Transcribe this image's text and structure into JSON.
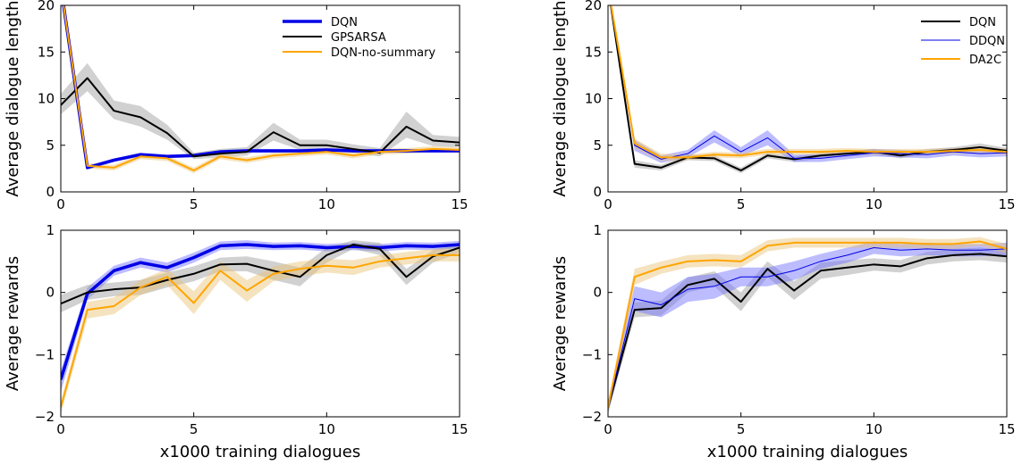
{
  "colors": {
    "blue": "#0000e6",
    "black": "#000000",
    "orange": "#ffa500",
    "gray_band": "#999999",
    "blue_band": "#6b6bff",
    "orange_band": "#e8c070"
  },
  "chart_data": [
    {
      "id": "top-left",
      "type": "line",
      "xlabel": "",
      "ylabel": "Average dialogue length",
      "xlim": [
        0,
        15
      ],
      "ylim": [
        0,
        20
      ],
      "xticks": [
        0,
        5,
        10,
        15
      ],
      "yticks": [
        0,
        5,
        10,
        15,
        20
      ],
      "legend_position": "top-right",
      "x": [
        0,
        1,
        2,
        3,
        4,
        5,
        6,
        7,
        8,
        9,
        10,
        11,
        12,
        13,
        14,
        15
      ],
      "series": [
        {
          "name": "DQN",
          "color": "#0000e6",
          "width": 3.5,
          "band_color": "#6b6bff",
          "values": [
            22,
            2.6,
            3.4,
            4.0,
            3.8,
            3.9,
            4.3,
            4.4,
            4.4,
            4.4,
            4.5,
            4.4,
            4.4,
            4.4,
            4.4,
            4.4
          ],
          "lower": [
            22,
            2.4,
            3.2,
            3.8,
            3.6,
            3.7,
            4.1,
            4.2,
            4.2,
            4.2,
            4.3,
            4.2,
            4.2,
            4.2,
            4.2,
            4.2
          ],
          "upper": [
            22,
            2.8,
            3.6,
            4.2,
            4.0,
            4.1,
            4.5,
            4.6,
            4.6,
            4.6,
            4.7,
            4.6,
            4.6,
            4.6,
            4.6,
            4.6
          ]
        },
        {
          "name": "GPSARSA",
          "color": "#000000",
          "width": 2,
          "band_color": "#999999",
          "values": [
            9.3,
            12.2,
            8.7,
            8.0,
            6.3,
            3.8,
            4.1,
            4.3,
            6.4,
            5.0,
            5.0,
            4.6,
            4.2,
            7.0,
            5.5,
            5.3
          ],
          "lower": [
            8.3,
            10.8,
            7.8,
            7.0,
            5.6,
            3.5,
            3.7,
            3.9,
            5.5,
            4.5,
            4.5,
            4.2,
            3.8,
            5.8,
            4.9,
            4.8
          ],
          "upper": [
            10.5,
            13.8,
            9.8,
            9.2,
            7.2,
            4.2,
            4.6,
            4.8,
            7.4,
            5.6,
            5.6,
            5.1,
            4.7,
            8.6,
            6.1,
            5.9
          ]
        },
        {
          "name": "DQN-no-summary",
          "color": "#ffa500",
          "width": 2,
          "band_color": "#e8c070",
          "values": [
            22,
            2.8,
            2.6,
            3.8,
            3.6,
            2.3,
            3.8,
            3.4,
            3.9,
            4.1,
            4.3,
            3.9,
            4.3,
            4.4,
            4.6,
            4.5
          ],
          "lower": [
            22,
            2.5,
            2.3,
            3.5,
            3.3,
            2.0,
            3.5,
            3.1,
            3.6,
            3.8,
            4.0,
            3.6,
            4.0,
            4.1,
            4.3,
            4.2
          ],
          "upper": [
            22,
            3.1,
            2.9,
            4.1,
            3.9,
            2.6,
            4.1,
            3.7,
            4.2,
            4.4,
            4.6,
            4.2,
            4.6,
            4.7,
            4.9,
            4.8
          ]
        }
      ]
    },
    {
      "id": "top-right",
      "type": "line",
      "xlabel": "",
      "ylabel": "Average dialogue length",
      "xlim": [
        0,
        15
      ],
      "ylim": [
        0,
        20
      ],
      "xticks": [
        0,
        5,
        10,
        15
      ],
      "yticks": [
        0,
        5,
        10,
        15,
        20
      ],
      "legend_position": "top-right",
      "x": [
        0,
        1,
        2,
        3,
        4,
        5,
        6,
        7,
        8,
        9,
        10,
        11,
        12,
        13,
        14,
        15
      ],
      "series": [
        {
          "name": "DQN",
          "color": "#000000",
          "width": 2,
          "band_color": "#999999",
          "values": [
            22,
            3.0,
            2.6,
            3.7,
            3.6,
            2.3,
            3.9,
            3.5,
            3.9,
            4.1,
            4.3,
            3.9,
            4.3,
            4.5,
            4.8,
            4.4
          ],
          "lower": [
            22,
            2.6,
            2.3,
            3.4,
            3.3,
            2.0,
            3.6,
            3.2,
            3.6,
            3.8,
            4.0,
            3.6,
            4.0,
            4.2,
            4.4,
            4.1
          ],
          "upper": [
            22,
            3.4,
            2.9,
            4.0,
            3.9,
            2.6,
            4.2,
            3.8,
            4.2,
            4.4,
            4.6,
            4.2,
            4.6,
            4.8,
            5.2,
            4.7
          ]
        },
        {
          "name": "DDQN",
          "color": "#0000e6",
          "width": 1,
          "band_color": "#6b6bff",
          "values": [
            22,
            5.0,
            3.5,
            4.1,
            6.0,
            4.3,
            5.8,
            3.6,
            3.6,
            3.9,
            4.2,
            4.1,
            4.0,
            4.3,
            4.1,
            4.2
          ],
          "lower": [
            22,
            4.4,
            3.1,
            3.7,
            5.3,
            3.8,
            5.0,
            3.2,
            3.2,
            3.5,
            3.8,
            3.7,
            3.6,
            3.9,
            3.7,
            3.8
          ],
          "upper": [
            22,
            5.6,
            3.9,
            4.5,
            6.6,
            4.8,
            6.6,
            4.0,
            4.0,
            4.3,
            4.6,
            4.5,
            4.4,
            4.7,
            4.5,
            4.6
          ]
        },
        {
          "name": "DA2C",
          "color": "#ffa500",
          "width": 2,
          "band_color": "#e8c070",
          "values": [
            22,
            5.2,
            3.7,
            3.7,
            4.0,
            3.9,
            4.3,
            4.3,
            4.3,
            4.4,
            4.3,
            4.3,
            4.3,
            4.4,
            4.5,
            4.3
          ],
          "lower": [
            22,
            4.7,
            3.3,
            3.4,
            3.7,
            3.6,
            4.0,
            4.0,
            4.0,
            4.1,
            4.0,
            4.0,
            4.0,
            4.1,
            4.2,
            4.0
          ],
          "upper": [
            22,
            5.7,
            4.1,
            4.0,
            4.3,
            4.2,
            4.6,
            4.6,
            4.6,
            4.7,
            4.6,
            4.6,
            4.6,
            4.7,
            4.8,
            4.6
          ]
        }
      ]
    },
    {
      "id": "bottom-left",
      "type": "line",
      "xlabel": "x1000 training dialogues",
      "ylabel": "Average rewards",
      "xlim": [
        0,
        15
      ],
      "ylim": [
        -2,
        1
      ],
      "xticks": [
        0,
        5,
        10,
        15
      ],
      "yticks": [
        -2,
        -1,
        0,
        1
      ],
      "x": [
        0,
        1,
        2,
        3,
        4,
        5,
        6,
        7,
        8,
        9,
        10,
        11,
        12,
        13,
        14,
        15
      ],
      "series": [
        {
          "name": "DQN",
          "color": "#0000e6",
          "width": 3.5,
          "band_color": "#6b6bff",
          "values": [
            -1.4,
            -0.02,
            0.35,
            0.48,
            0.4,
            0.56,
            0.75,
            0.77,
            0.74,
            0.75,
            0.72,
            0.74,
            0.72,
            0.75,
            0.74,
            0.77
          ],
          "lower": [
            -1.6,
            -0.12,
            0.27,
            0.4,
            0.32,
            0.48,
            0.68,
            0.7,
            0.68,
            0.69,
            0.66,
            0.68,
            0.66,
            0.69,
            0.68,
            0.71
          ],
          "upper": [
            -1.25,
            0.08,
            0.43,
            0.56,
            0.48,
            0.64,
            0.82,
            0.84,
            0.8,
            0.81,
            0.78,
            0.8,
            0.78,
            0.81,
            0.8,
            0.83
          ]
        },
        {
          "name": "GPSARSA",
          "color": "#000000",
          "width": 2,
          "band_color": "#999999",
          "values": [
            -0.18,
            0.0,
            0.05,
            0.08,
            0.2,
            0.3,
            0.45,
            0.46,
            0.35,
            0.25,
            0.6,
            0.77,
            0.7,
            0.25,
            0.58,
            0.72
          ],
          "lower": [
            -0.32,
            -0.12,
            -0.06,
            -0.04,
            0.08,
            0.18,
            0.34,
            0.34,
            0.2,
            0.1,
            0.48,
            0.7,
            0.6,
            0.12,
            0.48,
            0.64
          ],
          "upper": [
            -0.04,
            0.12,
            0.16,
            0.2,
            0.32,
            0.42,
            0.56,
            0.58,
            0.5,
            0.4,
            0.72,
            0.84,
            0.8,
            0.38,
            0.68,
            0.8
          ]
        },
        {
          "name": "DQN-no-summary",
          "color": "#ffa500",
          "width": 2,
          "band_color": "#e8c070",
          "values": [
            -1.85,
            -0.28,
            -0.22,
            0.08,
            0.25,
            -0.17,
            0.35,
            0.03,
            0.3,
            0.38,
            0.43,
            0.4,
            0.5,
            0.55,
            0.6,
            0.6
          ],
          "lower": [
            -1.95,
            -0.42,
            -0.35,
            -0.04,
            0.12,
            -0.35,
            0.2,
            -0.15,
            0.18,
            0.26,
            0.32,
            0.28,
            0.4,
            0.45,
            0.5,
            0.5
          ],
          "upper": [
            -1.75,
            -0.15,
            -0.08,
            0.2,
            0.38,
            0.02,
            0.5,
            0.2,
            0.42,
            0.5,
            0.54,
            0.52,
            0.6,
            0.65,
            0.7,
            0.7
          ]
        }
      ]
    },
    {
      "id": "bottom-right",
      "type": "line",
      "xlabel": "x1000 training dialogues",
      "ylabel": "Average rewards",
      "xlim": [
        0,
        15
      ],
      "ylim": [
        -2,
        1
      ],
      "xticks": [
        0,
        5,
        10,
        15
      ],
      "yticks": [
        -2,
        -1,
        0,
        1
      ],
      "x": [
        0,
        1,
        2,
        3,
        4,
        5,
        6,
        7,
        8,
        9,
        10,
        11,
        12,
        13,
        14,
        15
      ],
      "series": [
        {
          "name": "DQN",
          "color": "#000000",
          "width": 2,
          "band_color": "#999999",
          "values": [
            -1.85,
            -0.28,
            -0.25,
            0.12,
            0.22,
            -0.15,
            0.38,
            0.03,
            0.35,
            0.4,
            0.45,
            0.42,
            0.55,
            0.6,
            0.62,
            0.58
          ],
          "lower": [
            -1.95,
            -0.4,
            -0.37,
            0.0,
            0.1,
            -0.3,
            0.25,
            -0.12,
            0.22,
            0.28,
            0.35,
            0.32,
            0.45,
            0.5,
            0.52,
            0.48
          ],
          "upper": [
            -1.75,
            -0.16,
            -0.13,
            0.24,
            0.34,
            0.0,
            0.5,
            0.18,
            0.48,
            0.52,
            0.55,
            0.52,
            0.65,
            0.7,
            0.72,
            0.68
          ]
        },
        {
          "name": "DDQN",
          "color": "#0000e6",
          "width": 1,
          "band_color": "#6b6bff",
          "values": [
            -1.85,
            -0.1,
            -0.2,
            0.05,
            0.1,
            0.25,
            0.25,
            0.35,
            0.5,
            0.6,
            0.72,
            0.68,
            0.7,
            0.68,
            0.68,
            0.7
          ],
          "lower": [
            -1.95,
            -0.3,
            -0.4,
            -0.15,
            -0.1,
            0.1,
            0.1,
            0.2,
            0.38,
            0.48,
            0.62,
            0.58,
            0.6,
            0.58,
            0.58,
            0.6
          ],
          "upper": [
            -1.75,
            0.1,
            0.0,
            0.25,
            0.3,
            0.4,
            0.4,
            0.5,
            0.62,
            0.72,
            0.82,
            0.78,
            0.8,
            0.78,
            0.78,
            0.8
          ]
        },
        {
          "name": "DA2C",
          "color": "#ffa500",
          "width": 2,
          "band_color": "#e8c070",
          "values": [
            -1.85,
            0.25,
            0.4,
            0.5,
            0.52,
            0.5,
            0.75,
            0.8,
            0.8,
            0.8,
            0.8,
            0.8,
            0.78,
            0.78,
            0.82,
            0.7
          ],
          "lower": [
            -1.95,
            0.12,
            0.3,
            0.4,
            0.42,
            0.4,
            0.66,
            0.72,
            0.72,
            0.72,
            0.72,
            0.72,
            0.7,
            0.7,
            0.75,
            0.62
          ],
          "upper": [
            -1.75,
            0.38,
            0.5,
            0.6,
            0.62,
            0.6,
            0.84,
            0.88,
            0.88,
            0.88,
            0.88,
            0.88,
            0.86,
            0.86,
            0.89,
            0.78
          ]
        }
      ]
    }
  ]
}
